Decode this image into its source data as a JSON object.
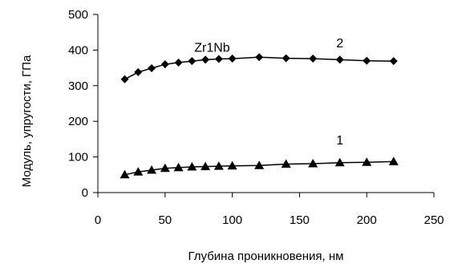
{
  "chart_data": {
    "type": "line",
    "title": "",
    "xlabel": "Глубина проникновения, нм",
    "ylabel": "Модуль, упругости, ГПа",
    "xlim": [
      0,
      250
    ],
    "ylim": [
      0,
      500
    ],
    "x_ticks": [
      0,
      50,
      100,
      150,
      200,
      250
    ],
    "y_ticks": [
      0,
      100,
      200,
      300,
      400,
      500
    ],
    "grid": false,
    "legend": "none",
    "annotations": [
      {
        "text": "Zr1Nb",
        "x": 85,
        "y": 395
      },
      {
        "text": "2",
        "x": 180,
        "y": 408
      },
      {
        "text": "1",
        "x": 180,
        "y": 135
      }
    ],
    "series": [
      {
        "label": "2",
        "marker": "diamond",
        "color": "#000000",
        "x": [
          20,
          30,
          40,
          50,
          60,
          70,
          80,
          90,
          100,
          120,
          140,
          160,
          180,
          200,
          220
        ],
        "y": [
          318,
          338,
          349,
          360,
          365,
          369,
          373,
          375,
          376,
          380,
          377,
          376,
          373,
          370,
          369
        ]
      },
      {
        "label": "1",
        "marker": "triangle",
        "color": "#000000",
        "x": [
          20,
          30,
          40,
          50,
          60,
          70,
          80,
          90,
          100,
          120,
          140,
          160,
          180,
          200,
          220
        ],
        "y": [
          50,
          58,
          63,
          68,
          70,
          72,
          73,
          74,
          75,
          76,
          80,
          81,
          84,
          85,
          87
        ]
      }
    ]
  }
}
